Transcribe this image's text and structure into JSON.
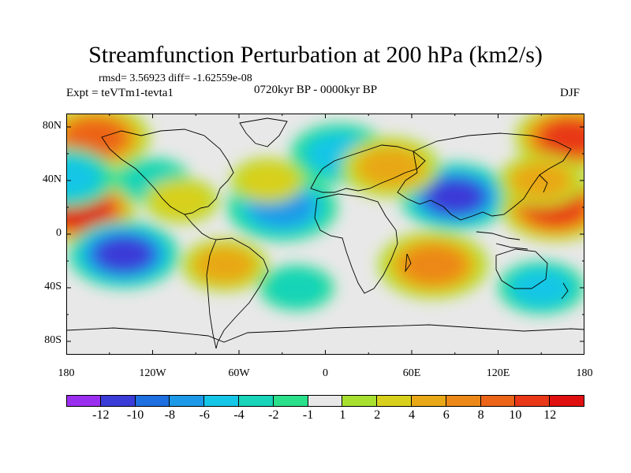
{
  "title": "Streamfunction Perturbation at 200 hPa (km2/s)",
  "stats": "rmsd= 3.56923 diff= -1.62559e-08",
  "experiment": "Expt = teVTm1-tevta1",
  "period": "0720kyr BP - 0000kyr BP",
  "season": "DJF",
  "map": {
    "lat_ticks": [
      "80N",
      "40N",
      "0",
      "40S",
      "80S"
    ],
    "lon_ticks": [
      "180",
      "120W",
      "60W",
      "0",
      "60E",
      "120E",
      "180"
    ],
    "lon_range": [
      -180,
      180
    ],
    "lat_range": [
      -90,
      90
    ]
  },
  "colorbar": {
    "colors": [
      "#9b2ff0",
      "#3b3bd8",
      "#1e6fe0",
      "#1c9ae8",
      "#16c6e6",
      "#18d4b8",
      "#2ae08a",
      "#e8e8e8",
      "#a8e030",
      "#d8d01c",
      "#e8a818",
      "#ec8818",
      "#ec6418",
      "#e83818",
      "#e01010"
    ],
    "labels": [
      "-12",
      "-10",
      "-8",
      "-6",
      "-4",
      "-2",
      "-1",
      "1",
      "2",
      "4",
      "6",
      "8",
      "10",
      "12"
    ]
  },
  "chart_data": {
    "type": "heatmap",
    "title": "Streamfunction Perturbation at 200 hPa (km2/s)",
    "xlabel": "",
    "ylabel": "",
    "xlim": [
      -180,
      180
    ],
    "ylim": [
      -90,
      90
    ],
    "levels": [
      -12,
      -10,
      -8,
      -6,
      -4,
      -2,
      -1,
      1,
      2,
      4,
      6,
      8,
      10,
      12
    ],
    "features": [
      {
        "lon": -170,
        "lat": 18,
        "value": 12
      },
      {
        "lon": -140,
        "lat": -15,
        "value": -10
      },
      {
        "lon": 90,
        "lat": 28,
        "value": -10
      },
      {
        "lon": 160,
        "lat": 20,
        "value": 11
      },
      {
        "lon": -160,
        "lat": 72,
        "value": 8
      },
      {
        "lon": 170,
        "lat": 72,
        "value": 10
      },
      {
        "lon": -30,
        "lat": 20,
        "value": -6
      },
      {
        "lon": 10,
        "lat": 60,
        "value": -5
      },
      {
        "lon": 75,
        "lat": -23,
        "value": 6
      },
      {
        "lon": -70,
        "lat": -23,
        "value": 4
      },
      {
        "lon": 45,
        "lat": 50,
        "value": 5
      },
      {
        "lon": -40,
        "lat": 40,
        "value": 3
      },
      {
        "lon": -180,
        "lat": 42,
        "value": -5
      },
      {
        "lon": -20,
        "lat": -40,
        "value": -3
      },
      {
        "lon": 150,
        "lat": 40,
        "value": 4
      },
      {
        "lon": 150,
        "lat": -40,
        "value": -4
      },
      {
        "lon": -120,
        "lat": 40,
        "value": -3
      },
      {
        "lon": -100,
        "lat": 25,
        "value": 3
      }
    ]
  }
}
